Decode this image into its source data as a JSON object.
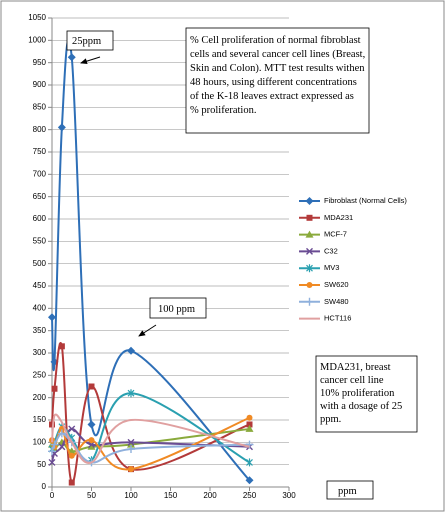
{
  "chart_data": {
    "type": "line",
    "x_label": "ppm",
    "annotations": [
      "25ppm",
      "100 ppm"
    ],
    "notes": [
      "% Cell proliferation of normal fibroblast",
      "cells and several cancer cell lines (Breast,",
      "Skin and Colon). MTT test results withen",
      "48 hours, using different concentrations",
      "of the K-18 leaves extract expressed as",
      "% proliferation."
    ],
    "side_note": [
      "MDA231, breast",
      "cancer cell line",
      "10% proliferation",
      "with a dosage of 25",
      "ppm."
    ],
    "x": [
      0,
      3.125,
      12.5,
      25,
      50,
      100,
      250
    ],
    "series": [
      {
        "name": "Fibroblast (Normal Cells)",
        "color": "#2e6fb7",
        "marker": "diamond",
        "values": [
          380,
          280,
          805,
          962,
          140,
          305,
          15
        ]
      },
      {
        "name": "MDA231",
        "color": "#b33a3a",
        "marker": "square",
        "values": [
          140,
          220,
          315,
          10,
          225,
          40,
          140
        ]
      },
      {
        "name": "MCF-7",
        "color": "#8aaa3c",
        "marker": "triangle",
        "values": [
          95,
          85,
          100,
          80,
          90,
          95,
          130
        ]
      },
      {
        "name": "C32",
        "color": "#6a4c93",
        "marker": "x",
        "values": [
          55,
          75,
          90,
          130,
          95,
          100,
          90
        ]
      },
      {
        "name": "MV3",
        "color": "#2aa0b0",
        "marker": "star",
        "values": [
          85,
          100,
          135,
          110,
          60,
          210,
          55
        ]
      },
      {
        "name": "SW620",
        "color": "#f08a24",
        "marker": "circle",
        "values": [
          105,
          90,
          130,
          70,
          105,
          40,
          155
        ]
      },
      {
        "name": "SW480",
        "color": "#8fb0dc",
        "marker": "plus",
        "values": [
          80,
          95,
          120,
          100,
          55,
          85,
          95
        ]
      },
      {
        "name": "HCT116",
        "color": "#e0a0a0",
        "marker": "none",
        "values": [
          100,
          160,
          145,
          100,
          55,
          150,
          90
        ]
      }
    ],
    "xlim": [
      0,
      300
    ],
    "xticks": [
      0,
      50,
      100,
      150,
      200,
      250,
      300
    ],
    "ylim": [
      0,
      1050
    ],
    "yticks": [
      0,
      50,
      100,
      150,
      200,
      250,
      300,
      350,
      400,
      450,
      500,
      550,
      600,
      650,
      700,
      750,
      800,
      850,
      900,
      950,
      1000,
      1050
    ],
    "grid": true,
    "legend": "right"
  }
}
